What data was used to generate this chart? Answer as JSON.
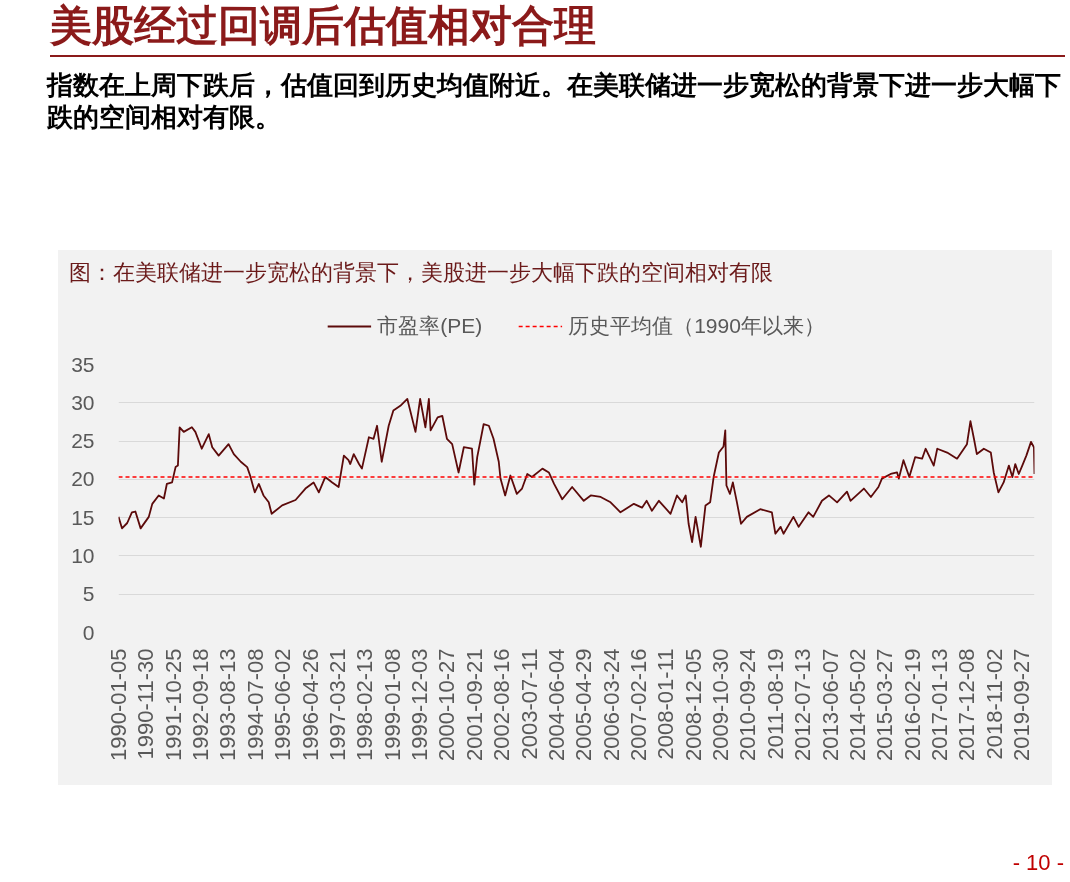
{
  "chart_data": {
    "type": "line",
    "title": "美股经过回调后估值相对合理",
    "subtitle": "指数在上周下跌后，估值回到历史均值附近。在美联储进一步宽松的背景下进一步大幅下跌的空间相对有限。",
    "annotations": [
      "图：在美联储进一步宽松的背景下，美股进一步大幅下跌的空间相对有限",
      "- 10 -"
    ],
    "x": [
      "1990-01-05",
      "1990-02-16",
      "1990-04-20",
      "1990-06-15",
      "1990-07-27",
      "1990-09-28",
      "1991-01-04",
      "1991-02-15",
      "1991-05-03",
      "1991-07-05",
      "1991-08-09",
      "1991-10-11",
      "1991-11-22",
      "1991-12-20",
      "1992-01-10",
      "1992-02-28",
      "1992-06-05",
      "1992-07-17",
      "1992-10-02",
      "1992-12-25",
      "1993-02-05",
      "1993-04-23",
      "1993-08-20",
      "1993-10-22",
      "1994-01-14",
      "1994-04-01",
      "1994-05-06",
      "1994-07-01",
      "1994-08-19",
      "1994-10-14",
      "1994-12-16",
      "1995-01-20",
      "1995-05-26",
      "1995-11-03",
      "1996-03-01",
      "1996-06-07",
      "1996-08-09",
      "1996-10-25",
      "1997-01-17",
      "1997-04-04",
      "1997-06-06",
      "1997-08-01",
      "1997-08-22",
      "1997-10-03",
      "1997-12-05",
      "1998-01-09",
      "1998-04-03",
      "1998-05-29",
      "1998-07-10",
      "1998-09-04",
      "1998-11-27",
      "1999-01-22",
      "1999-04-16",
      "1999-07-09",
      "1999-10-15",
      "1999-12-10",
      "2000-02-11",
      "2000-03-24",
      "2000-04-14",
      "2000-07-07",
      "2000-09-01",
      "2000-10-27",
      "2000-12-29",
      "2001-03-16",
      "2001-05-18",
      "2001-08-24",
      "2001-09-21",
      "2001-10-26",
      "2002-01-11",
      "2002-03-15",
      "2002-05-10",
      "2002-07-12",
      "2002-08-02",
      "2002-09-27",
      "2002-11-29",
      "2003-02-14",
      "2003-04-18",
      "2003-06-20",
      "2003-08-15",
      "2003-12-19",
      "2004-03-05",
      "2004-05-07",
      "2004-08-13",
      "2004-12-10",
      "2005-04-29",
      "2005-07-22",
      "2005-11-18",
      "2006-03-17",
      "2006-07-14",
      "2006-12-22",
      "2007-03-30",
      "2007-05-25",
      "2007-07-27",
      "2007-10-19",
      "2008-03-07",
      "2008-05-23",
      "2008-07-25",
      "2008-09-05",
      "2008-10-10",
      "2008-11-21",
      "2009-01-02",
      "2009-03-06",
      "2009-05-01",
      "2009-06-26",
      "2009-08-07",
      "2009-10-09",
      "2009-12-04",
      "2009-12-25",
      "2010-01-08",
      "2010-02-19",
      "2010-03-26",
      "2010-05-14",
      "2010-07-02",
      "2010-09-10",
      "2011-02-18",
      "2011-07-08",
      "2011-08-19",
      "2011-10-21",
      "2011-11-25",
      "2012-03-23",
      "2012-05-25",
      "2012-09-21",
      "2012-11-16",
      "2013-03-01",
      "2013-05-24",
      "2013-08-30",
      "2013-12-27",
      "2014-02-07",
      "2014-07-18",
      "2014-10-10",
      "2015-01-09",
      "2015-02-20",
      "2015-06-05",
      "2015-08-21",
      "2015-09-11",
      "2015-11-06",
      "2016-01-15",
      "2016-03-25",
      "2016-06-17",
      "2016-07-29",
      "2016-11-04",
      "2016-12-16",
      "2017-04-14",
      "2017-08-11",
      "2017-12-08",
      "2018-01-19",
      "2018-03-02",
      "2018-04-06",
      "2018-06-29",
      "2018-09-21",
      "2018-10-26",
      "2018-12-21",
      "2019-02-22",
      "2019-04-26",
      "2019-06-07",
      "2019-07-12",
      "2019-08-23",
      "2019-10-04",
      "2019-11-22",
      "2020-01-17",
      "2020-02-21",
      "2020-02-28"
    ],
    "series": [
      {
        "name": "市盈率(PE)",
        "color": "#5c0a0a",
        "values": [
          15.1,
          13.6,
          14.3,
          15.7,
          15.8,
          13.6,
          15.1,
          16.8,
          17.9,
          17.5,
          19.4,
          19.6,
          21.6,
          21.8,
          26.8,
          26.2,
          26.8,
          26.2,
          24.0,
          25.9,
          24.2,
          23.1,
          24.6,
          23.3,
          22.3,
          21.6,
          20.5,
          18.3,
          19.4,
          17.9,
          17.0,
          15.5,
          16.6,
          17.3,
          18.8,
          19.6,
          18.3,
          20.3,
          19.6,
          19.0,
          23.1,
          22.5,
          22.0,
          23.3,
          22.0,
          21.4,
          25.5,
          25.3,
          27.0,
          22.3,
          27.0,
          29.0,
          29.6,
          30.5,
          26.2,
          30.5,
          26.8,
          30.5,
          26.4,
          28.1,
          28.3,
          25.3,
          24.6,
          20.9,
          24.2,
          24.0,
          19.3,
          22.9,
          27.2,
          27.0,
          25.3,
          22.3,
          20.1,
          17.9,
          20.5,
          18.1,
          18.8,
          20.7,
          20.3,
          21.4,
          20.9,
          19.4,
          17.4,
          19.0,
          17.2,
          17.9,
          17.7,
          17.0,
          15.7,
          16.8,
          16.3,
          17.2,
          15.9,
          17.2,
          15.5,
          17.9,
          17.0,
          17.9,
          14.2,
          11.8,
          15.1,
          11.2,
          16.6,
          17.0,
          20.3,
          23.5,
          24.3,
          26.4,
          19.2,
          18.1,
          19.6,
          17.0,
          14.2,
          15.1,
          16.1,
          15.7,
          12.9,
          13.8,
          12.9,
          15.1,
          13.8,
          15.7,
          15.1,
          17.2,
          17.9,
          17.0,
          18.4,
          17.2,
          18.8,
          17.7,
          19.0,
          20.1,
          20.7,
          20.9,
          20.1,
          22.5,
          20.3,
          22.9,
          22.7,
          24.0,
          21.8,
          24.0,
          23.5,
          22.7,
          24.6,
          27.6,
          25.3,
          23.3,
          24.0,
          23.5,
          20.9,
          18.3,
          19.6,
          21.8,
          20.3,
          22.0,
          20.7,
          21.8,
          23.1,
          24.9,
          24.2,
          20.7
        ]
      }
    ],
    "xlim": [
      "1990-01-05",
      "2020-02-28"
    ],
    "xticks": [
      "1990-01-05",
      "1990-11-30",
      "1991-10-25",
      "1992-09-18",
      "1993-08-13",
      "1994-07-08",
      "1995-06-02",
      "1996-04-26",
      "1997-03-21",
      "1998-02-13",
      "1999-01-08",
      "1999-12-03",
      "2000-10-27",
      "2001-09-21",
      "2002-08-16",
      "2003-07-11",
      "2004-06-04",
      "2005-04-29",
      "2006-03-24",
      "2007-02-16",
      "2008-01-11",
      "2008-12-05",
      "2009-10-30",
      "2010-09-24",
      "2011-08-19",
      "2012-07-13",
      "2013-06-07",
      "2014-05-02",
      "2015-03-27",
      "2016-02-19",
      "2017-01-13",
      "2017-12-08",
      "2018-11-02",
      "2019-09-27"
    ],
    "ylim": [
      0,
      35
    ],
    "yticks": [
      0,
      5,
      10,
      15,
      20,
      25,
      30,
      35
    ],
    "ref_lines": [
      {
        "axis": "y",
        "value": 20.3,
        "label": "历史平均值（1990年以来）",
        "color": "#ff0000",
        "line_style": "dashed"
      }
    ],
    "grid": "y",
    "legend": "top"
  }
}
